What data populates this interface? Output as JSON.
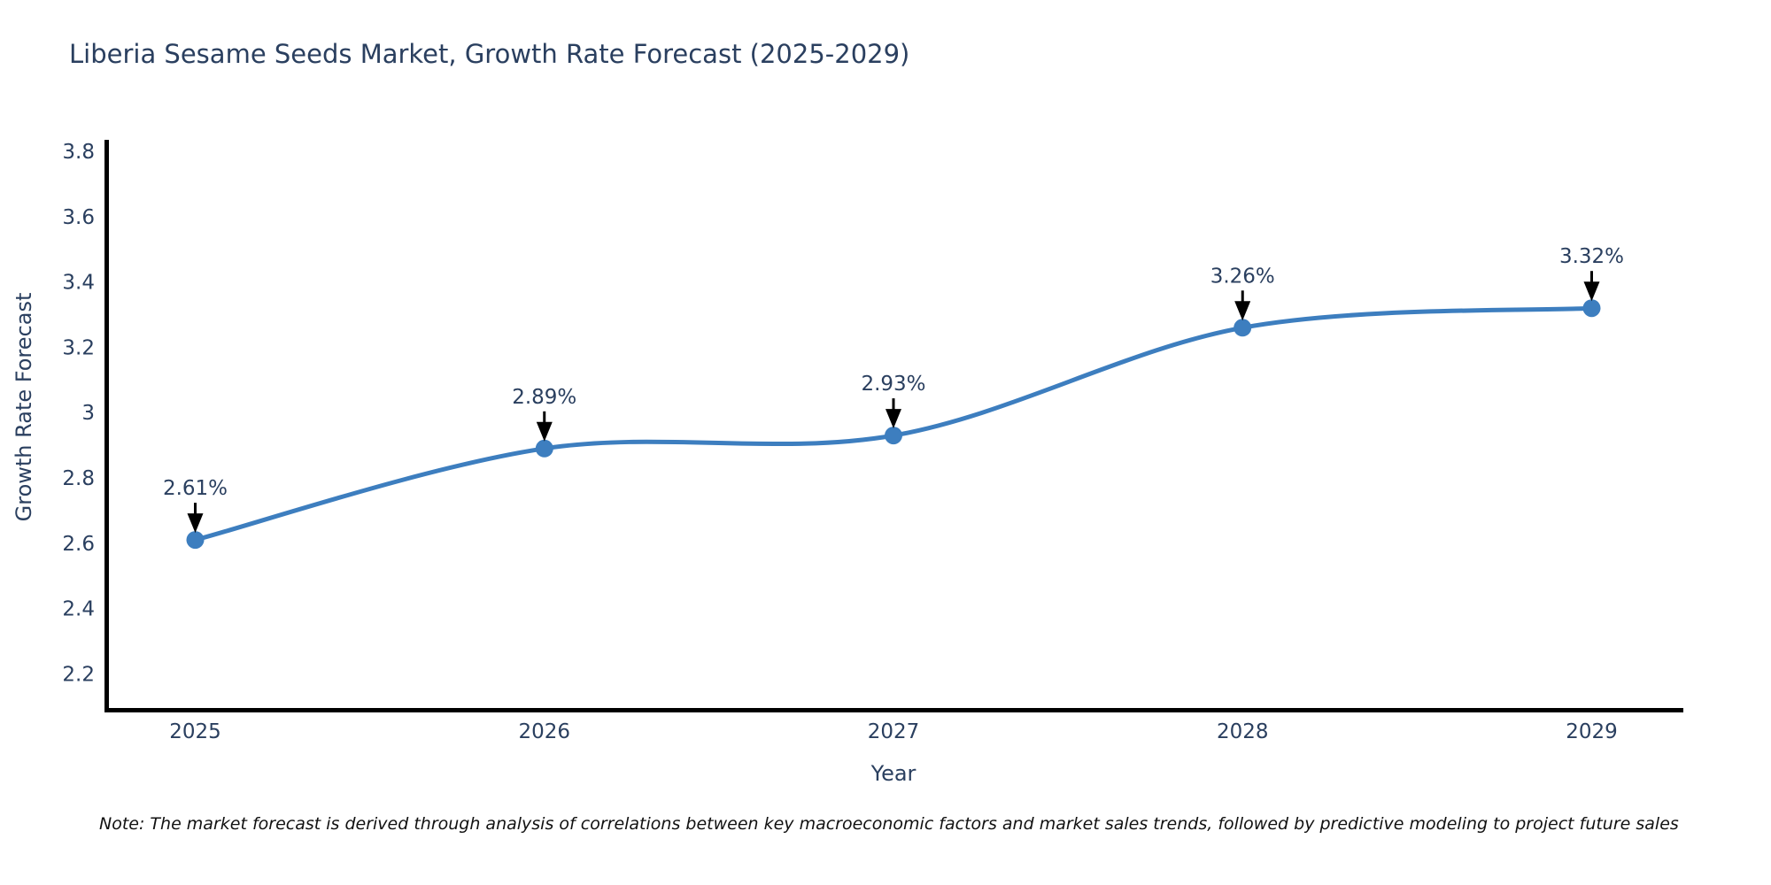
{
  "page": {
    "title": "Liberia Sesame Seeds Market, Growth Rate Forecast (2025-2029)",
    "note": "Note: The market forecast is derived through analysis of correlations between key macroeconomic factors and market sales trends, followed by predictive modeling to project future sales"
  },
  "chart_data": {
    "type": "line",
    "title": "Liberia Sesame Seeds Market, Growth Rate Forecast (2025-2029)",
    "xlabel": "Year",
    "ylabel": "Growth Rate Forecast",
    "x": [
      2025,
      2026,
      2027,
      2028,
      2029
    ],
    "series": [
      {
        "name": "Growth Rate Forecast",
        "values": [
          2.61,
          2.89,
          2.93,
          3.26,
          3.32
        ]
      }
    ],
    "point_labels": [
      "2.61%",
      "2.89%",
      "2.93%",
      "3.26%",
      "3.32%"
    ],
    "xticks": [
      "2025",
      "2026",
      "2027",
      "2028",
      "2029"
    ],
    "yticks": [
      2.2,
      2.4,
      2.6,
      2.8,
      3,
      3.2,
      3.4,
      3.6,
      3.8
    ],
    "ytick_labels": [
      "2.2",
      "2.4",
      "2.6",
      "2.8",
      "3",
      "3.2",
      "3.4",
      "3.6",
      "3.8"
    ],
    "xlim": [
      2024.74,
      2029.26
    ],
    "ylim": [
      2.09,
      3.83
    ],
    "line_shape": "spline",
    "grid": false,
    "legend": false,
    "colors": {
      "line": "#3d7ebf",
      "marker": "#3d7ebf",
      "axis": "#000000",
      "text": "#2a3f5f",
      "annotation_arrow": "#000000",
      "note_text": "#111111"
    }
  }
}
